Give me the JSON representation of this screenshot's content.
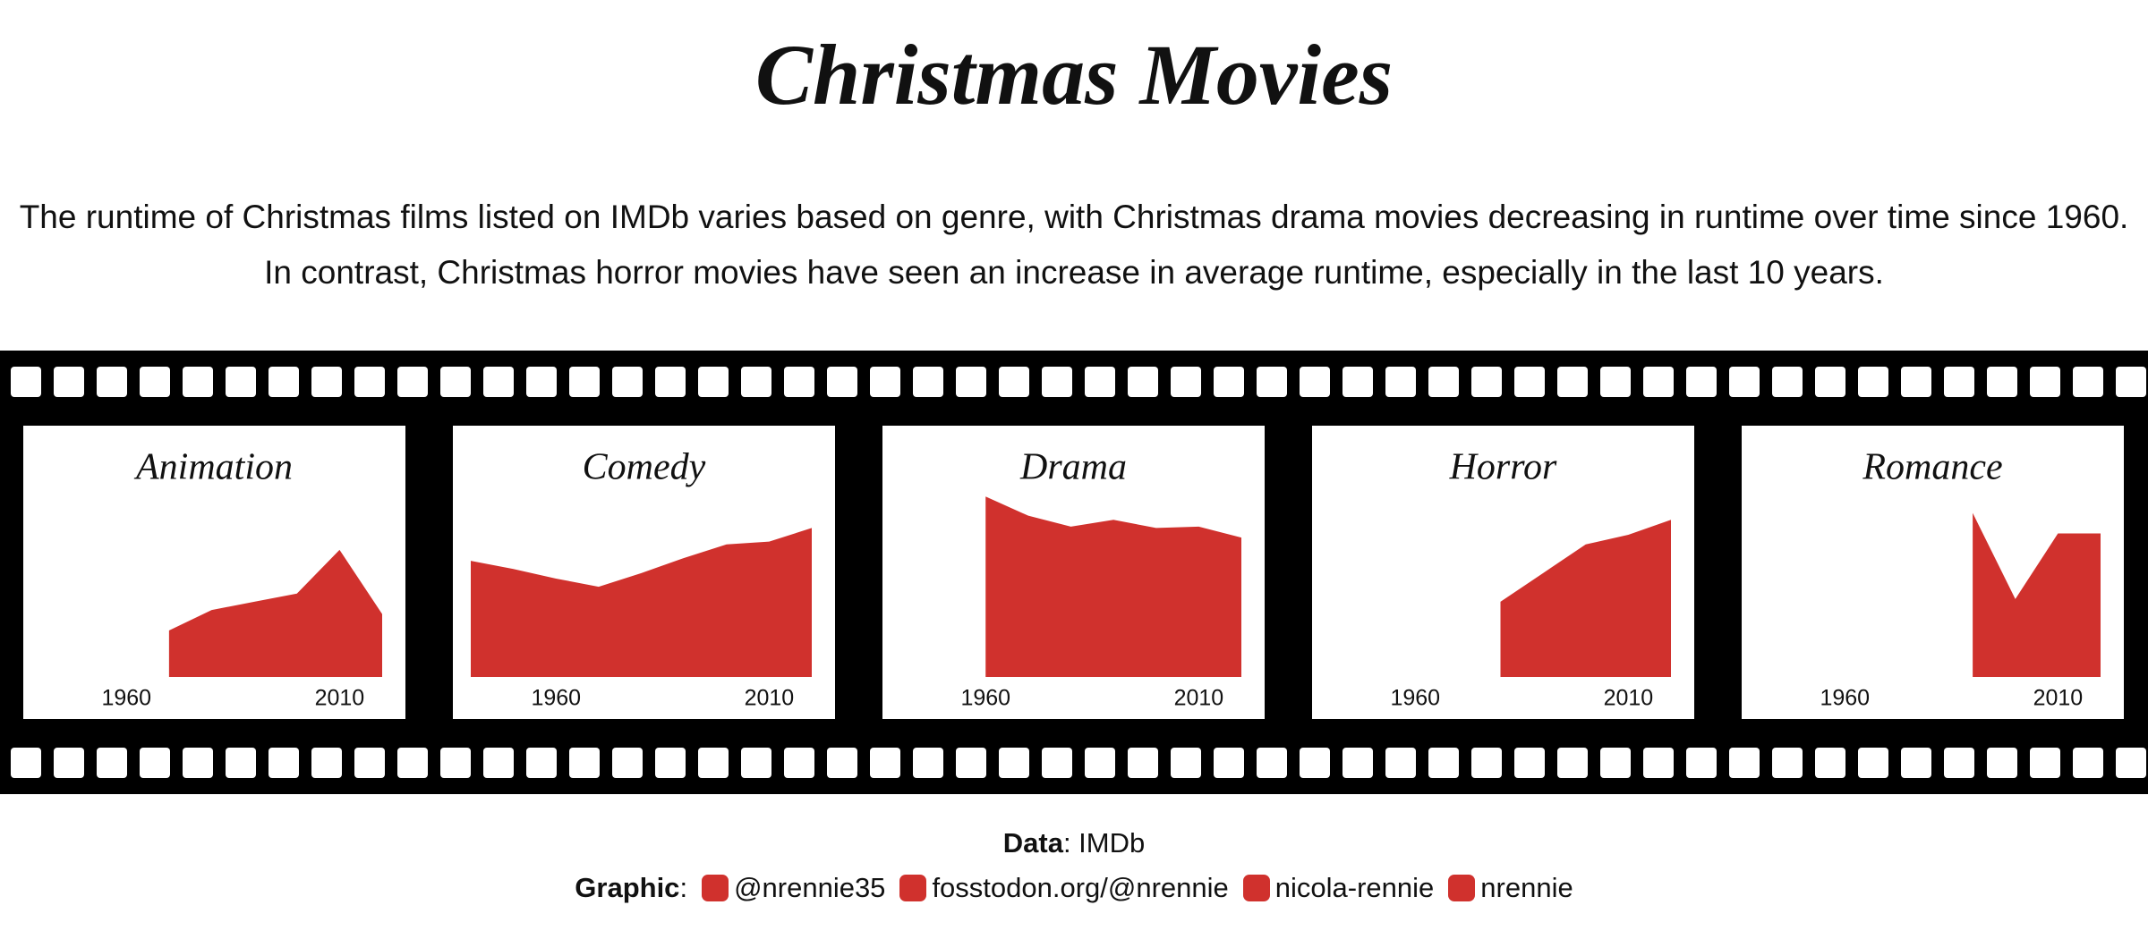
{
  "header": {
    "title": "Christmas Movies",
    "subtitle": "The runtime of Christmas films listed on IMDb varies based on genre, with Christmas drama movies decreasing in runtime over time since 1960. In contrast, Christmas horror movies have seen an increase in average runtime, especially in the last 10 years."
  },
  "chart_data": [
    {
      "type": "area",
      "title": "Animation",
      "x": [
        1970,
        1980,
        1990,
        2000,
        2010,
        2020
      ],
      "values": [
        34,
        49,
        55,
        61,
        93,
        46
      ],
      "color": "#d0312d",
      "xlim": [
        1940,
        2020
      ],
      "xticks": [
        1960,
        2010
      ],
      "ylim": [
        0,
        140
      ]
    },
    {
      "type": "area",
      "title": "Comedy",
      "x": [
        1940,
        1950,
        1960,
        1970,
        1980,
        1990,
        2000,
        2010,
        2020
      ],
      "values": [
        85,
        79,
        72,
        66,
        76,
        87,
        97,
        99,
        109
      ],
      "color": "#d0312d",
      "xlim": [
        1940,
        2020
      ],
      "xticks": [
        1960,
        2010
      ],
      "ylim": [
        0,
        140
      ]
    },
    {
      "type": "area",
      "title": "Drama",
      "x": [
        1960,
        1970,
        1980,
        1990,
        2000,
        2010,
        2020
      ],
      "values": [
        132,
        118,
        110,
        115,
        109,
        110,
        102
      ],
      "color": "#d0312d",
      "xlim": [
        1940,
        2020
      ],
      "xticks": [
        1960,
        2010
      ],
      "ylim": [
        0,
        140
      ]
    },
    {
      "type": "area",
      "title": "Horror",
      "x": [
        1980,
        1990,
        2000,
        2010,
        2020
      ],
      "values": [
        55,
        76,
        97,
        104,
        115
      ],
      "color": "#d0312d",
      "xlim": [
        1940,
        2020
      ],
      "xticks": [
        1960,
        2010
      ],
      "ylim": [
        0,
        140
      ]
    },
    {
      "type": "area",
      "title": "Romance",
      "x": [
        1990,
        2000,
        2010,
        2020
      ],
      "values": [
        120,
        57,
        105,
        105
      ],
      "color": "#d0312d",
      "xlim": [
        1940,
        2020
      ],
      "xticks": [
        1960,
        2010
      ],
      "ylim": [
        0,
        140
      ]
    }
  ],
  "footer": {
    "data_label": "Data",
    "data_text": ": IMDb",
    "graphic_label": "Graphic",
    "graphic_colon": ":",
    "handles": [
      "@nrennie35",
      "fosstodon.org/@nrennie",
      "nicola-rennie",
      "nrennie"
    ]
  }
}
